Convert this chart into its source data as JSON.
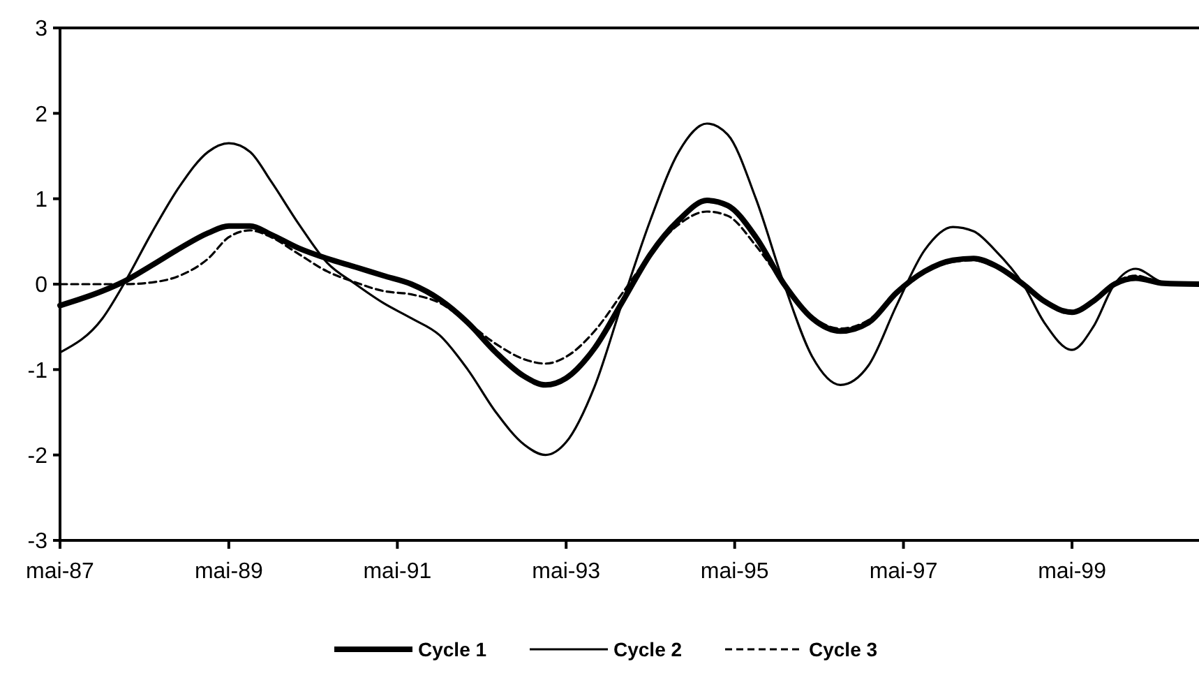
{
  "chart_data": {
    "type": "line",
    "x": [
      "1987-05",
      "1987-11",
      "1988-02",
      "1988-06",
      "1988-10",
      "1989-02",
      "1989-05",
      "1989-08",
      "1989-11",
      "1990-03",
      "1990-07",
      "1990-11",
      "1991-03",
      "1991-07",
      "1991-11",
      "1992-03",
      "1992-07",
      "1992-11",
      "1993-02",
      "1993-05",
      "1993-09",
      "1994-01",
      "1994-05",
      "1994-09",
      "1995-01",
      "1995-04",
      "1995-08",
      "1995-12",
      "1996-04",
      "1996-08",
      "1996-12",
      "1997-04",
      "1997-08",
      "1997-12",
      "1998-03",
      "1998-06",
      "1998-10",
      "1999-01",
      "1999-05",
      "1999-08",
      "1999-11",
      "2000-02",
      "2000-06",
      "2000-11"
    ],
    "series": [
      {
        "name": "Cycle 1",
        "color": "#000000",
        "line_style": "solid",
        "values": [
          -0.25,
          -0.08,
          0.03,
          0.22,
          0.42,
          0.6,
          0.68,
          0.68,
          0.58,
          0.42,
          0.3,
          0.2,
          0.1,
          0.0,
          -0.18,
          -0.45,
          -0.8,
          -1.08,
          -1.18,
          -1.1,
          -0.75,
          -0.2,
          0.35,
          0.75,
          0.98,
          0.92,
          0.55,
          0,
          -0.4,
          -0.55,
          -0.45,
          -0.1,
          0.15,
          0.28,
          0.3,
          0.22,
          0,
          -0.2,
          -0.33,
          -0.2,
          0,
          0.07,
          0.01,
          0
        ]
      },
      {
        "name": "Cycle 2",
        "color": "#000000",
        "line_style": "solid",
        "values": [
          -0.8,
          -0.4,
          0,
          0.6,
          1.15,
          1.55,
          1.65,
          1.55,
          1.2,
          0.7,
          0.25,
          0,
          -0.22,
          -0.4,
          -0.6,
          -1.0,
          -1.5,
          -1.88,
          -2.0,
          -1.85,
          -1.2,
          -0.2,
          0.75,
          1.55,
          1.88,
          1.75,
          1.0,
          0,
          -0.85,
          -1.18,
          -0.95,
          -0.25,
          0.4,
          0.67,
          0.62,
          0.4,
          0,
          -0.45,
          -0.77,
          -0.5,
          0,
          0.18,
          0.02,
          0
        ]
      },
      {
        "name": "Cycle 3",
        "color": "#000000",
        "line_style": "dashed",
        "values": [
          0,
          0,
          0,
          0.02,
          0.1,
          0.3,
          0.55,
          0.63,
          0.55,
          0.35,
          0.15,
          0.02,
          -0.08,
          -0.12,
          -0.22,
          -0.45,
          -0.7,
          -0.88,
          -0.93,
          -0.85,
          -0.55,
          -0.1,
          0.35,
          0.7,
          0.85,
          0.8,
          0.45,
          0,
          -0.38,
          -0.52,
          -0.42,
          -0.1,
          0.14,
          0.26,
          0.28,
          0.2,
          0,
          -0.2,
          -0.33,
          -0.18,
          0.02,
          0.1,
          0.01,
          0
        ]
      }
    ],
    "xlim": [
      "1987-05",
      "2000-11"
    ],
    "xticks": [
      {
        "value": "1987-05",
        "label": "mai-87"
      },
      {
        "value": "1989-05",
        "label": "mai-89"
      },
      {
        "value": "1991-05",
        "label": "mai-91"
      },
      {
        "value": "1993-05",
        "label": "mai-93"
      },
      {
        "value": "1995-05",
        "label": "mai-95"
      },
      {
        "value": "1997-05",
        "label": "mai-97"
      },
      {
        "value": "1999-05",
        "label": "mai-99"
      }
    ],
    "ylim": [
      -3,
      3
    ],
    "yticks": [
      -3,
      -2,
      -1,
      0,
      1,
      2,
      3
    ],
    "grid": false,
    "legend": "bottom",
    "marker": "none"
  }
}
